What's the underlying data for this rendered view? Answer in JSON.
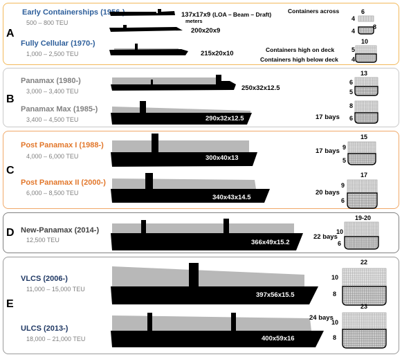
{
  "colors": {
    "blue": "#2e5f9b",
    "orange": "#e2772b",
    "gray": "#808080",
    "navy": "#1f3864",
    "panel_border_a": "#f2b95a",
    "panel_border_b": "#c8c8c8",
    "panel_border_c": "#f0a868",
    "panel_border_d": "#808080",
    "panel_border_e": "#9a9a9a"
  },
  "header": {
    "loa_label": "(LOA – Beam – Draft)",
    "across_label": "Containers across",
    "high_deck_label": "Containers high on deck",
    "high_below_label": "Containers high below deck"
  },
  "groups": [
    {
      "letter": "A",
      "generations": [
        {
          "name": "Early Containerships (1956-)",
          "teu": "500 – 800 TEU",
          "dims": [
            "137x17x9",
            "200x20x9"
          ],
          "dims_unit": "meters",
          "across": "6",
          "high_deck": "4",
          "high_below": "4",
          "stack_total": "8"
        },
        {
          "name": "Fully Cellular (1970-)",
          "teu": "1,000 – 2,500 TEU",
          "dims": [
            "215x20x10"
          ],
          "across": "10",
          "high_deck": "5",
          "high_below": "4"
        }
      ]
    },
    {
      "letter": "B",
      "generations": [
        {
          "name": "Panamax (1980-)",
          "teu": "3,000 – 3,400 TEU",
          "dims": [
            "250x32x12.5"
          ],
          "across": "13",
          "high_deck": "6",
          "high_below": "5"
        },
        {
          "name": "Panamax Max (1985-)",
          "teu": "3,400 – 4,500 TEU",
          "dims": [
            "290x32x12.5"
          ],
          "bays": "17 bays",
          "high_deck": "8",
          "high_below": "6"
        }
      ]
    },
    {
      "letter": "C",
      "generations": [
        {
          "name": "Post Panamax I (1988-)",
          "teu": "4,000 – 6,000 TEU",
          "dims": [
            "300x40x13"
          ],
          "bays": "17 bays",
          "across": "15",
          "high_deck": "9",
          "high_below": "5"
        },
        {
          "name": "Post Panamax II (2000-)",
          "teu": "6,000 – 8,500 TEU",
          "dims": [
            "340x43x14.5"
          ],
          "bays": "20 bays",
          "across": "17",
          "high_deck": "9",
          "high_below": "6"
        }
      ]
    },
    {
      "letter": "D",
      "generations": [
        {
          "name": "New-Panamax (2014-)",
          "teu": "12,500 TEU",
          "dims": [
            "366x49x15.2"
          ],
          "bays": "22 bays",
          "across": "19-20",
          "high_deck": "10",
          "high_below": "6"
        }
      ]
    },
    {
      "letter": "E",
      "generations": [
        {
          "name": "VLCS (2006-)",
          "teu": "11,000 – 15,000 TEU",
          "dims": [
            "397x56x15.5"
          ],
          "across": "22",
          "high_deck": "10",
          "high_below": "8"
        },
        {
          "name": "ULCS (2013-)",
          "teu": "18,000 – 21,000 TEU",
          "dims": [
            "400x59x16"
          ],
          "bays": "24 bays",
          "across": "23",
          "high_deck": "10",
          "high_below": "8"
        }
      ]
    }
  ]
}
